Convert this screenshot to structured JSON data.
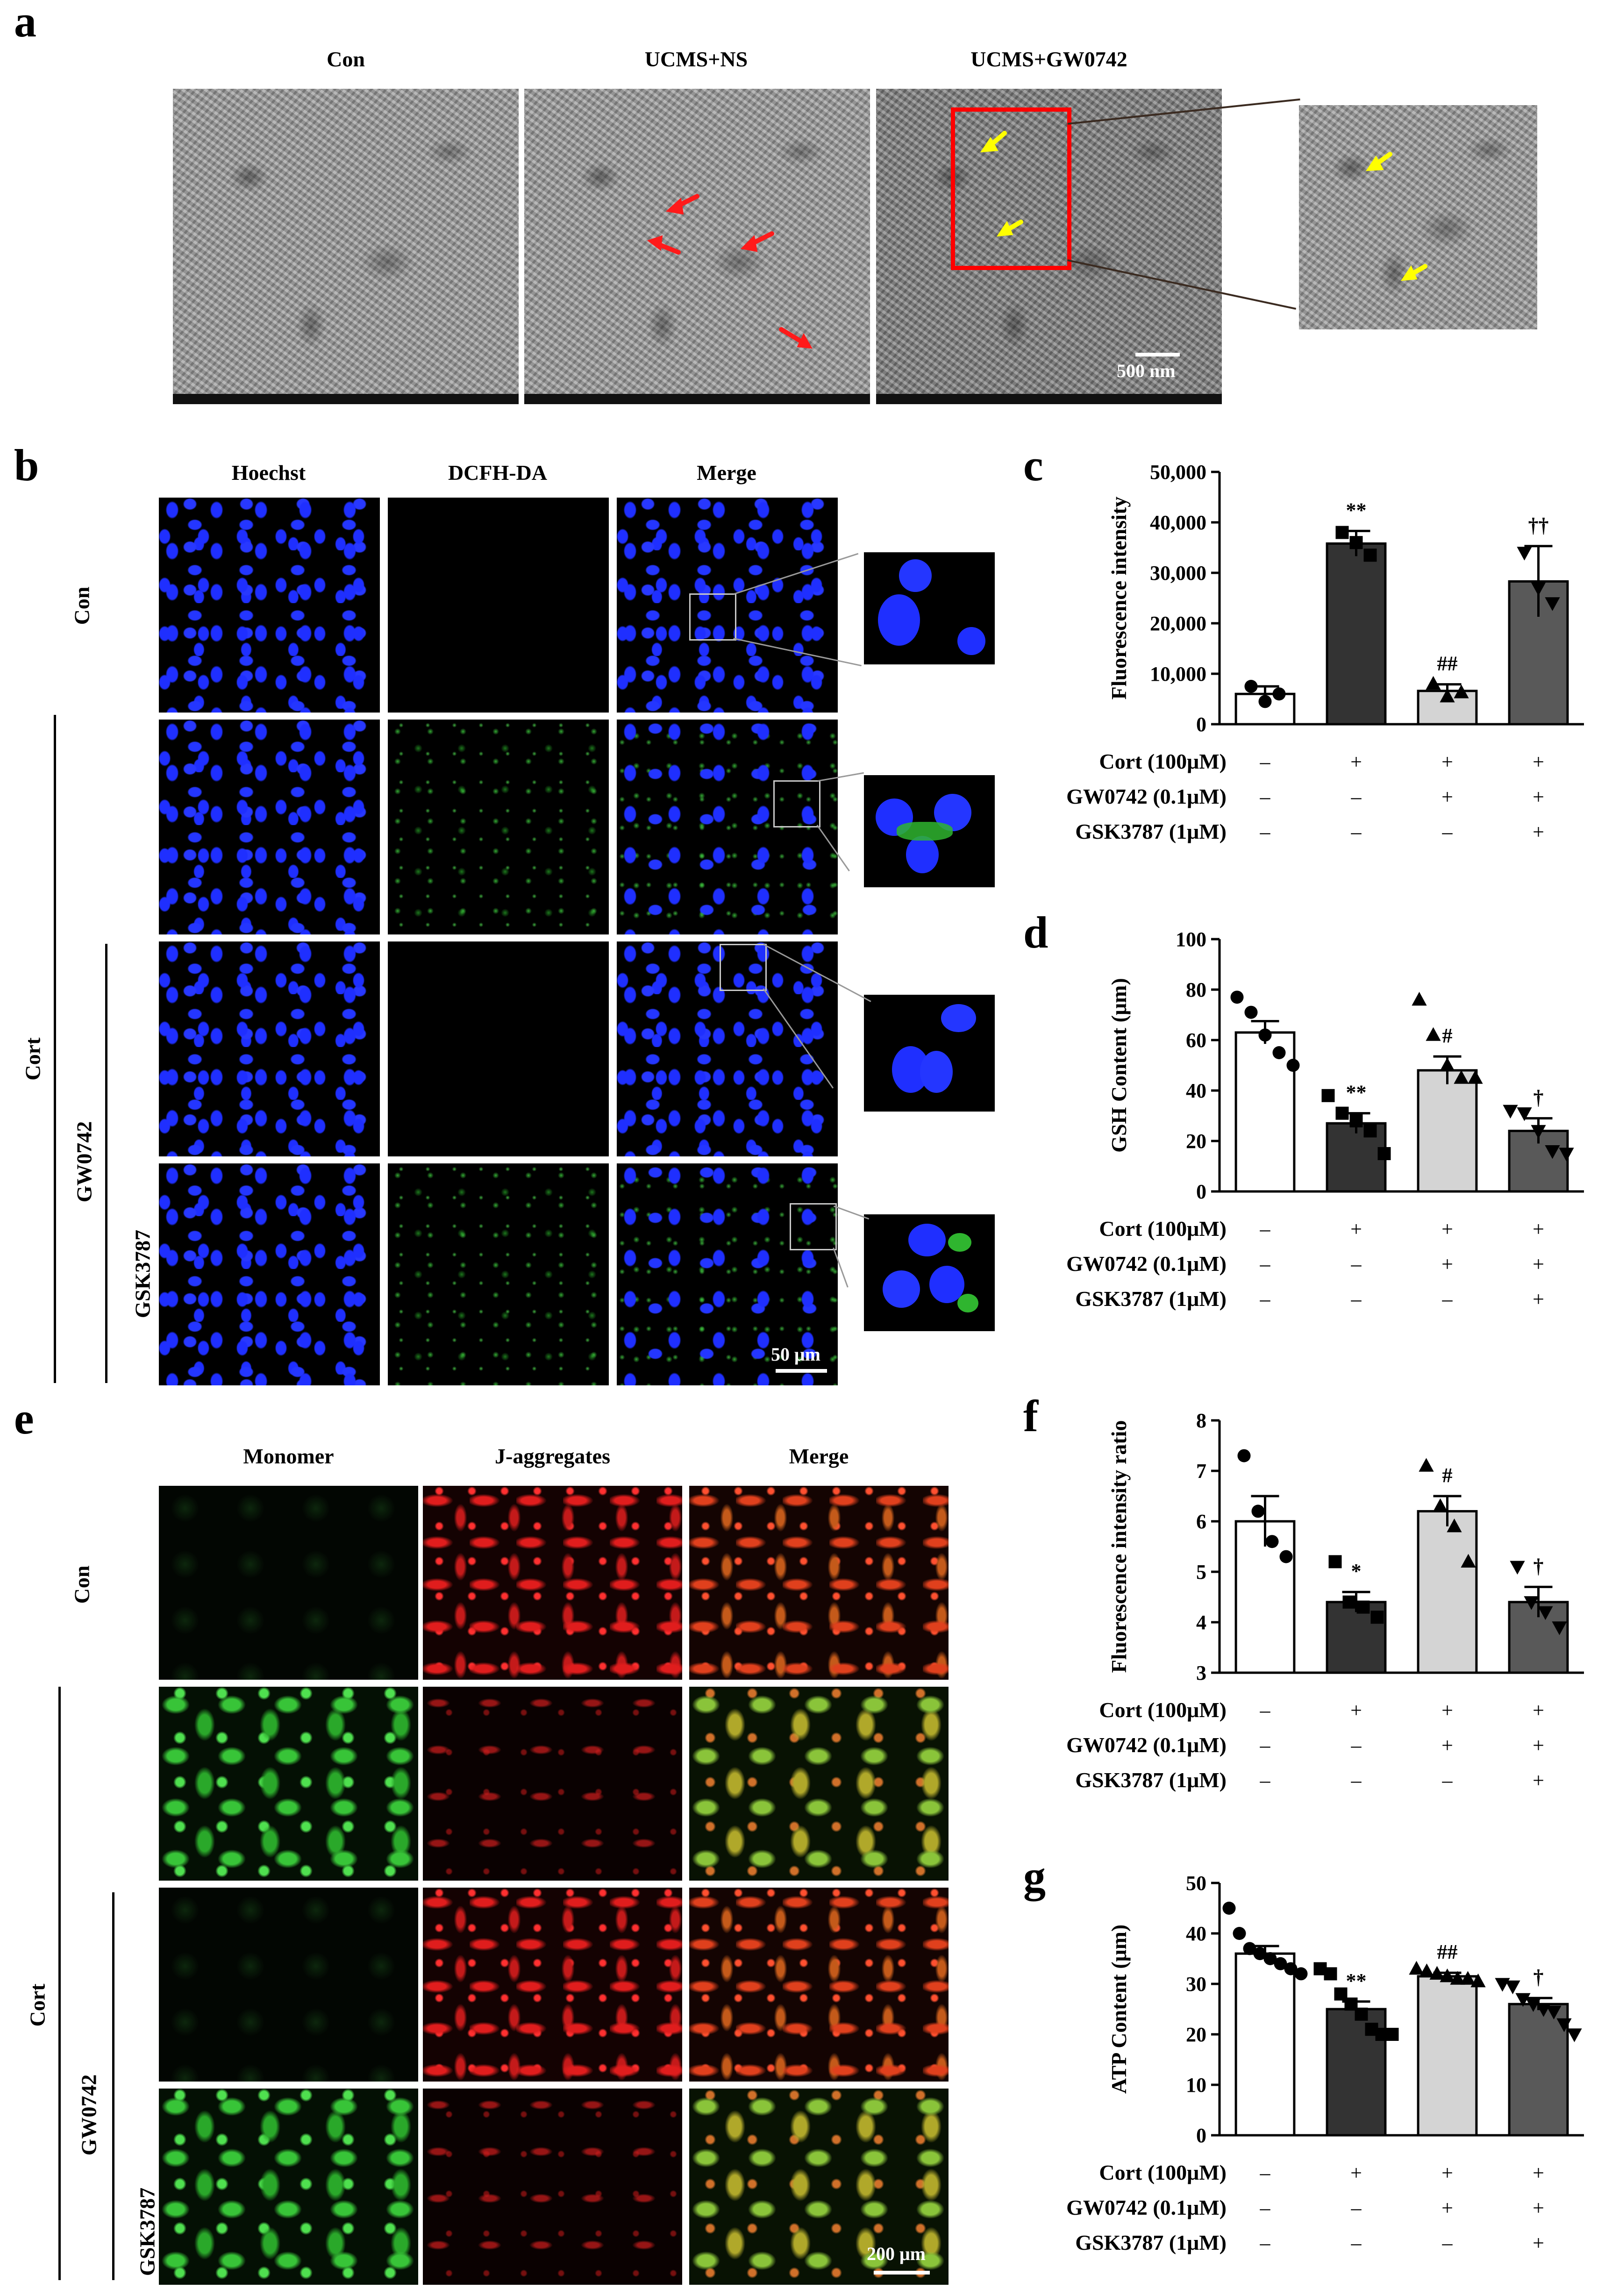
{
  "panels": {
    "a": {
      "letter": "a",
      "titles": [
        "Con",
        "UCMS+NS",
        "UCMS+GW0742"
      ],
      "scale_label": "500 nm"
    },
    "b": {
      "letter": "b",
      "columns": [
        "Hoechst",
        "DCFH-DA",
        "Merge"
      ],
      "row_con": "Con",
      "row_cort": "Cort",
      "row_gw": "GW0742",
      "row_gsk": "GSK3787",
      "scale_label": "50 μm"
    },
    "e": {
      "letter": "e",
      "columns": [
        "Monomer",
        "J-aggregates",
        "Merge"
      ],
      "row_con": "Con",
      "row_cort": "Cort",
      "row_gw": "GW0742",
      "row_gsk": "GSK3787",
      "scale_label": "200 μm"
    }
  },
  "condition_table": {
    "row_labels": [
      "Cort (100μM)",
      "GW0742 (0.1μM)",
      "GSK3787 (1μM)"
    ],
    "signs": [
      [
        "–",
        "+",
        "+",
        "+"
      ],
      [
        "–",
        "–",
        "+",
        "+"
      ],
      [
        "–",
        "–",
        "–",
        "+"
      ]
    ]
  },
  "colors": {
    "con": "#ffffff",
    "cort": "#333333",
    "gw": "#d4d4d4",
    "gsk": "#595959",
    "tem_arrow_red": "#ff1a1a",
    "tem_arrow_yellow": "#ffff00",
    "highlight_box": "#ff0000"
  },
  "chart_data": [
    {
      "panel": "c",
      "type": "bar",
      "categories": [
        "Con",
        "Cort",
        "Cort+GW0742",
        "Cort+GW0742+GSK3787"
      ],
      "values": [
        6000,
        35800,
        6600,
        28300
      ],
      "errors": [
        1500,
        2500,
        1300,
        7000
      ],
      "points": [
        [
          7500,
          4500,
          6000
        ],
        [
          38000,
          36000,
          33500
        ],
        [
          8000,
          5500,
          6300
        ],
        [
          34000,
          27000,
          24000
        ]
      ],
      "markers": [
        "circle",
        "square",
        "triangle-up",
        "triangle-down"
      ],
      "annotations": [
        "",
        "**",
        "##",
        "††"
      ],
      "ylabel": "Fluorescence intensity",
      "ylim": [
        0,
        50000
      ],
      "yticks": [
        "0",
        "10,000",
        "20,000",
        "30,000",
        "40,000",
        "50,000"
      ],
      "ytick_values": [
        0,
        10000,
        20000,
        30000,
        40000,
        50000
      ]
    },
    {
      "panel": "d",
      "type": "bar",
      "categories": [
        "Con",
        "Cort",
        "Cort+GW0742",
        "Cort+GW0742+GSK3787"
      ],
      "values": [
        63,
        27,
        48,
        24
      ],
      "errors": [
        4.5,
        4,
        5.5,
        5
      ],
      "points": [
        [
          77,
          71,
          62,
          55,
          50
        ],
        [
          38,
          31,
          28,
          24,
          15
        ],
        [
          76,
          62,
          50,
          45,
          45
        ],
        [
          32,
          31,
          24,
          16,
          15
        ]
      ],
      "markers": [
        "circle",
        "square",
        "triangle-up",
        "triangle-down"
      ],
      "annotations": [
        "",
        "**",
        "#",
        "†"
      ],
      "ylabel": "GSH Content (μm)",
      "ylim": [
        0,
        100
      ],
      "yticks": [
        "0",
        "20",
        "40",
        "60",
        "80",
        "100"
      ],
      "ytick_values": [
        0,
        20,
        40,
        60,
        80,
        100
      ]
    },
    {
      "panel": "f",
      "type": "bar",
      "categories": [
        "Con",
        "Cort",
        "Cort+GW0742",
        "Cort+GW0742+GSK3787"
      ],
      "values": [
        6.0,
        4.4,
        6.2,
        4.4
      ],
      "errors": [
        0.5,
        0.2,
        0.3,
        0.3
      ],
      "points": [
        [
          7.3,
          6.2,
          5.6,
          5.3
        ],
        [
          5.2,
          4.4,
          4.3,
          4.1
        ],
        [
          7.1,
          6.3,
          5.9,
          5.2
        ],
        [
          5.1,
          4.4,
          4.2,
          3.9
        ]
      ],
      "markers": [
        "circle",
        "square",
        "triangle-up",
        "triangle-down"
      ],
      "annotations": [
        "",
        "*",
        "#",
        "†"
      ],
      "ylabel": "Fluorescence intensity ratio",
      "ylim": [
        3,
        8
      ],
      "yticks": [
        "3",
        "4",
        "5",
        "6",
        "7",
        "8"
      ],
      "ytick_values": [
        3,
        4,
        5,
        6,
        7,
        8
      ]
    },
    {
      "panel": "g",
      "type": "bar",
      "categories": [
        "Con",
        "Cort",
        "Cort+GW0742",
        "Cort+GW0742+GSK3787"
      ],
      "values": [
        36,
        25,
        31.5,
        26
      ],
      "errors": [
        1.5,
        1.5,
        0.7,
        1.2
      ],
      "points": [
        [
          45,
          40,
          37,
          36,
          35,
          34,
          33,
          32
        ],
        [
          33,
          32,
          28,
          26,
          24,
          21,
          20,
          20
        ],
        [
          33,
          32.5,
          32,
          31.5,
          31,
          31,
          30.5
        ],
        [
          30,
          29.5,
          27,
          26,
          25,
          24.5,
          22,
          20
        ]
      ],
      "markers": [
        "circle",
        "square",
        "triangle-up",
        "triangle-down"
      ],
      "annotations": [
        "",
        "**",
        "##",
        "†"
      ],
      "ylabel": "ATP Content (μm)",
      "ylim": [
        0,
        50
      ],
      "yticks": [
        "0",
        "10",
        "20",
        "30",
        "40",
        "50"
      ],
      "ytick_values": [
        0,
        10,
        20,
        30,
        40,
        50
      ]
    }
  ]
}
